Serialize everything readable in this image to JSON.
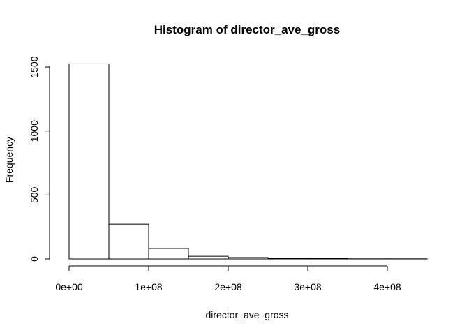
{
  "chart_data": {
    "type": "bar",
    "title": "Histogram of director_ave_gross",
    "xlabel": "director_ave_gross",
    "ylabel": "Frequency",
    "bins": [
      {
        "start": 0,
        "end": 50000000,
        "count": 1525
      },
      {
        "start": 50000000,
        "end": 100000000,
        "count": 272
      },
      {
        "start": 100000000,
        "end": 150000000,
        "count": 82
      },
      {
        "start": 150000000,
        "end": 200000000,
        "count": 21
      },
      {
        "start": 200000000,
        "end": 250000000,
        "count": 11
      },
      {
        "start": 250000000,
        "end": 300000000,
        "count": 3
      },
      {
        "start": 300000000,
        "end": 350000000,
        "count": 4
      },
      {
        "start": 350000000,
        "end": 400000000,
        "count": 1
      },
      {
        "start": 400000000,
        "end": 450000000,
        "count": 1
      }
    ],
    "x_ticks": [
      {
        "value": 0,
        "label": "0e+00"
      },
      {
        "value": 100000000,
        "label": "1e+08"
      },
      {
        "value": 200000000,
        "label": "2e+08"
      },
      {
        "value": 300000000,
        "label": "3e+08"
      },
      {
        "value": 400000000,
        "label": "4e+08"
      }
    ],
    "y_ticks": [
      {
        "value": 0,
        "label": "0"
      },
      {
        "value": 500,
        "label": "500"
      },
      {
        "value": 1000,
        "label": "1000"
      },
      {
        "value": 1500,
        "label": "1500"
      }
    ],
    "xlim": [
      0,
      450000000
    ],
    "ylim": [
      0,
      1500
    ],
    "grid": false,
    "legend": "none"
  }
}
